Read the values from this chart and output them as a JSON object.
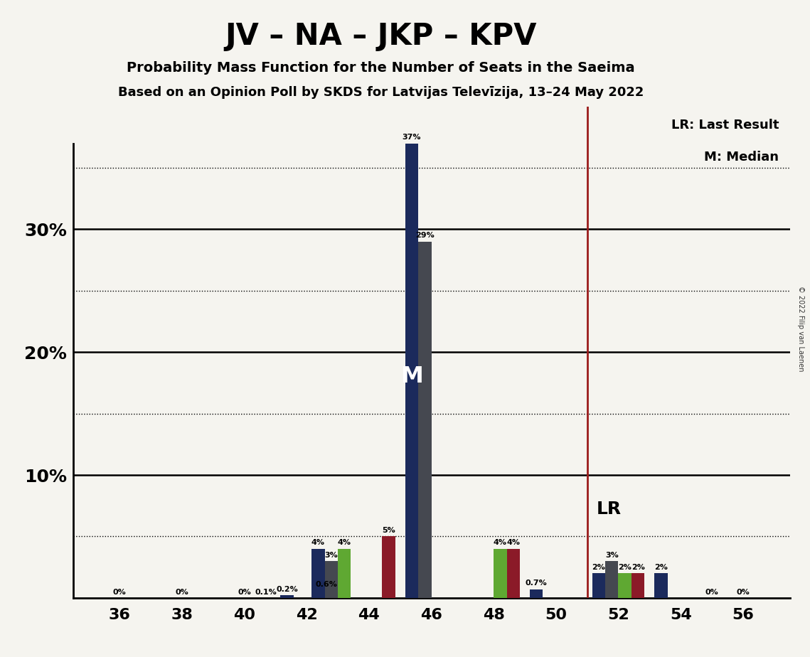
{
  "title": "JV – NA – JKP – KPV",
  "subtitle1": "Probability Mass Function for the Number of Seats in the Saeima",
  "subtitle2": "Based on an Opinion Poll by SKDS for Latvijas Televīzija, 13–24 May 2022",
  "copyright": "© 2022 Filip van Laenen",
  "legend_lr": "LR: Last Result",
  "legend_m": "M: Median",
  "median_seat": 46,
  "lr_seat": 51,
  "colors": {
    "JV": "#1b2a5c",
    "NA": "#454850",
    "JKP": "#5fa832",
    "KPV": "#8b1a28"
  },
  "bars": [
    {
      "seat": 42,
      "party": "JV",
      "val": 0.2,
      "label": "0.2%"
    },
    {
      "seat": 42,
      "party": "KPV",
      "val": 0.6,
      "label": "0.6%"
    },
    {
      "seat": 43,
      "party": "JV",
      "val": 4,
      "label": "4%"
    },
    {
      "seat": 43,
      "party": "NA",
      "val": 3,
      "label": "3%"
    },
    {
      "seat": 43,
      "party": "JKP",
      "val": 4,
      "label": "4%"
    },
    {
      "seat": 44,
      "party": "KPV",
      "val": 5,
      "label": "5%"
    },
    {
      "seat": 46,
      "party": "JV",
      "val": 37,
      "label": "37%"
    },
    {
      "seat": 46,
      "party": "NA",
      "val": 29,
      "label": "29%"
    },
    {
      "seat": 48,
      "party": "JKP",
      "val": 4,
      "label": "4%"
    },
    {
      "seat": 48,
      "party": "KPV",
      "val": 4,
      "label": "4%"
    },
    {
      "seat": 50,
      "party": "JV",
      "val": 0.7,
      "label": "0.7%"
    },
    {
      "seat": 52,
      "party": "NA",
      "val": 3,
      "label": "3%"
    },
    {
      "seat": 52,
      "party": "JKP",
      "val": 2,
      "label": "2%"
    },
    {
      "seat": 52,
      "party": "KPV",
      "val": 2,
      "label": "2%"
    },
    {
      "seat": 52,
      "party": "JV",
      "val": 2,
      "label": "2%"
    },
    {
      "seat": 54,
      "party": "JV",
      "val": 2,
      "label": "2%"
    }
  ],
  "zero_labels": [
    {
      "x": 36,
      "label": "0%"
    },
    {
      "x": 38,
      "label": "0%"
    },
    {
      "x": 40,
      "label": "0%"
    },
    {
      "x": 40.6,
      "label": "0.1%"
    },
    {
      "x": 55,
      "label": "0%"
    },
    {
      "x": 56,
      "label": "0%"
    }
  ],
  "party_order": [
    "JV",
    "NA",
    "JKP",
    "KPV"
  ],
  "bar_width": 0.42,
  "xticks": [
    36,
    38,
    40,
    42,
    44,
    46,
    48,
    50,
    52,
    54,
    56
  ],
  "ytick_major": [
    10,
    20,
    30
  ],
  "ytick_dotted": [
    5,
    15,
    25,
    35
  ],
  "xlim": [
    34.5,
    57.5
  ],
  "ylim": [
    0,
    40
  ],
  "background_color": "#f5f4ef"
}
